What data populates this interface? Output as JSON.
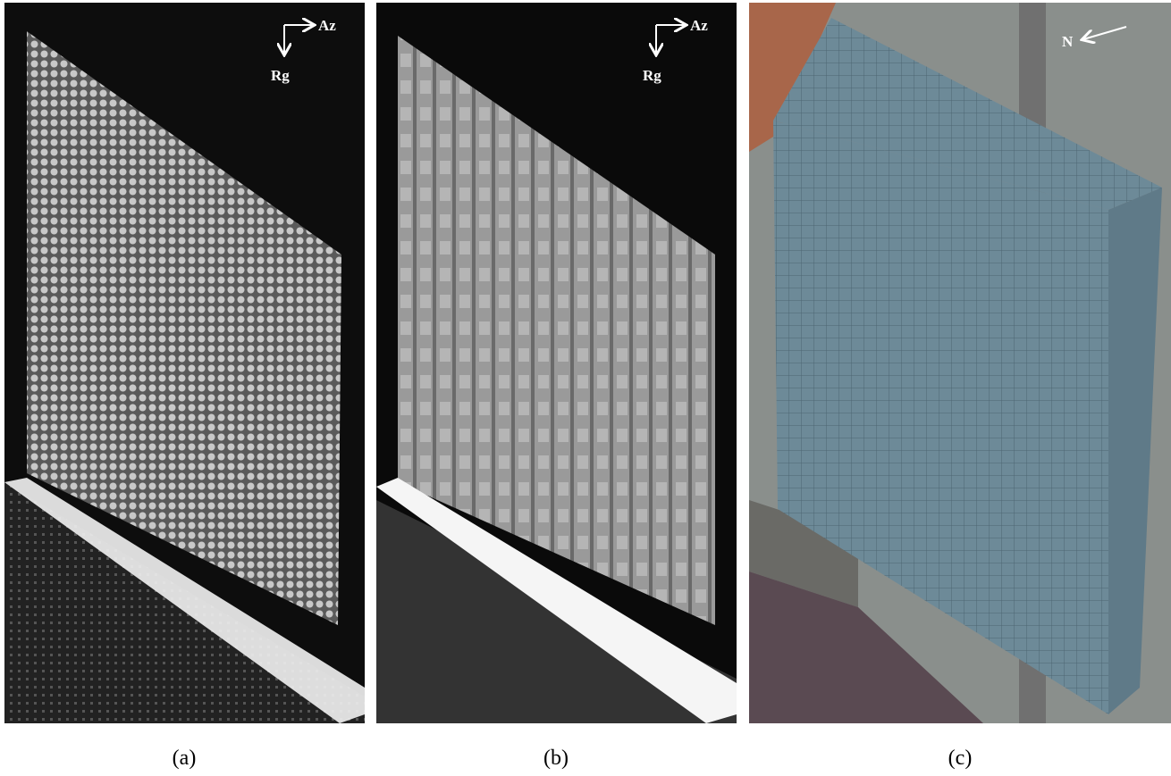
{
  "panels": [
    {
      "label": "(a)",
      "axis_x": "Az",
      "axis_y": "Rg"
    },
    {
      "label": "(b)",
      "axis_x": "Az",
      "axis_y": "Rg"
    },
    {
      "label": "(c)",
      "north": "N"
    }
  ]
}
